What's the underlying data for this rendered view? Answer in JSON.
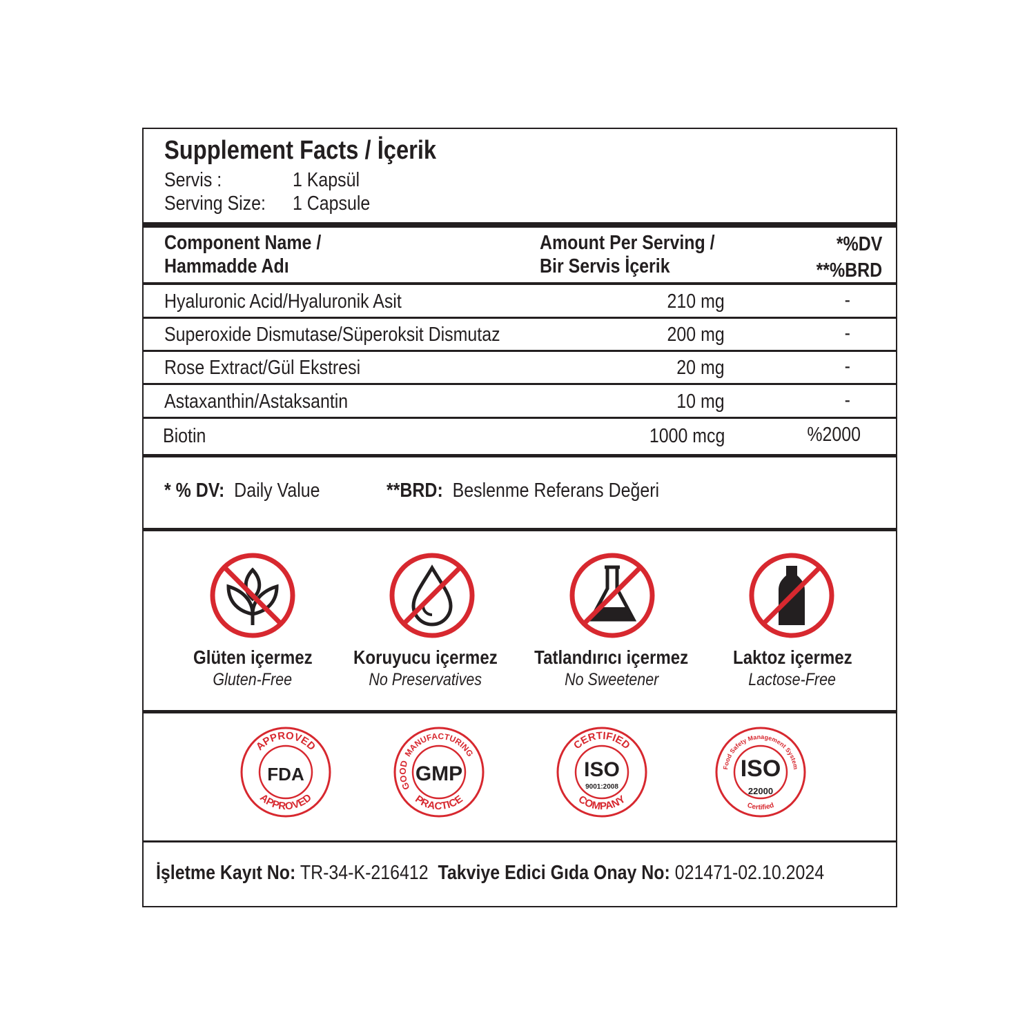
{
  "header": {
    "title": "Supplement Facts / İçerik",
    "serving_tr_label": "Servis :",
    "serving_tr_value": "1 Kapsül",
    "serving_en_label": "Serving Size:",
    "serving_en_value": "1 Capsule"
  },
  "columns": {
    "name_line1": "Component Name /",
    "name_line2": "Hammadde Adı",
    "amount_line1": "Amount Per Serving /",
    "amount_line2": "Bir Servis İçerik",
    "dv_line1": "*%DV",
    "dv_line2": "**%BRD"
  },
  "rows": [
    {
      "name": "Hyaluronic Acid/Hyaluronik Asit",
      "amount": "210 mg",
      "dv": "-"
    },
    {
      "name": "Superoxide Dismutase/Süperoksit Dismutaz",
      "amount": "200 mg",
      "dv": "-"
    },
    {
      "name": "Rose Extract/Gül Ekstresi",
      "amount": "20 mg",
      "dv": "-"
    },
    {
      "name": "Astaxanthin/Astaksantin",
      "amount": "10 mg",
      "dv": "-"
    },
    {
      "name": "Biotin",
      "amount": "1000 mcg",
      "dv": "%2000"
    }
  ],
  "footnotes": {
    "dv_key": "* % DV:",
    "dv_text": "Daily Value",
    "brd_key": "**BRD:",
    "brd_text": "Beslenme Referans Değeri"
  },
  "free_from": [
    {
      "icon": "no-gluten-icon",
      "tr": "Glüten içermez",
      "en": "Gluten-Free"
    },
    {
      "icon": "no-preservatives-icon",
      "tr": "Koruyucu içermez",
      "en": "No Preservatives"
    },
    {
      "icon": "no-sweetener-icon",
      "tr": "Tatlandırıcı içermez",
      "en": "No Sweetener"
    },
    {
      "icon": "no-lactose-icon",
      "tr": "Laktoz içermez",
      "en": "Lactose-Free"
    }
  ],
  "certifications": [
    {
      "name": "FDA",
      "top": "APPROVED",
      "bottom": "APPROVED"
    },
    {
      "name": "GMP",
      "top": "MANUFACTURING",
      "bottom": "PRACTICE",
      "left": "GOOD"
    },
    {
      "name": "ISO",
      "sub": "9001:2008",
      "top": "CERTIFIED",
      "bottom": "COMPANY"
    },
    {
      "name": "ISO",
      "sub": "22000",
      "top": "Food Safety Management System",
      "bottom": "Certified"
    }
  ],
  "footer": {
    "reg_label": "İşletme Kayıt No:",
    "reg_value": "TR-34-K-216412",
    "approval_label": "Takviye Edici Gıda Onay No:",
    "approval_value": "021471-02.10.2024"
  },
  "colors": {
    "accent": "#d7282f",
    "text": "#231f20"
  }
}
